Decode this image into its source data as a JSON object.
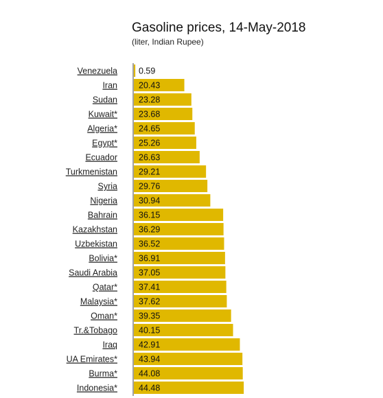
{
  "chart_data": {
    "type": "bar",
    "orientation": "horizontal",
    "title": "Gasoline prices, 14-May-2018",
    "subtitle": "(liter, Indian Rupee)",
    "bar_color": "#e0b800",
    "categories": [
      "Venezuela",
      "Iran",
      "Sudan",
      "Kuwait*",
      "Algeria*",
      "Egypt*",
      "Ecuador",
      "Turkmenistan",
      "Syria",
      "Nigeria",
      "Bahrain",
      "Kazakhstan",
      "Uzbekistan",
      "Bolivia*",
      "Saudi Arabia",
      "Qatar*",
      "Malaysia*",
      "Oman*",
      "Tr.&Tobago",
      "Iraq",
      "UA Emirates*",
      "Burma*",
      "Indonesia*"
    ],
    "values": [
      0.59,
      20.43,
      23.28,
      23.68,
      24.65,
      25.26,
      26.63,
      29.21,
      29.76,
      30.94,
      36.15,
      36.29,
      36.52,
      36.91,
      37.05,
      37.41,
      37.62,
      39.35,
      40.15,
      42.91,
      43.94,
      44.08,
      44.48
    ],
    "value_labels": [
      "0.59",
      "20.43",
      "23.28",
      "23.68",
      "24.65",
      "25.26",
      "26.63",
      "29.21",
      "29.76",
      "30.94",
      "36.15",
      "36.29",
      "36.52",
      "36.91",
      "37.05",
      "37.41",
      "37.62",
      "39.35",
      "40.15",
      "42.91",
      "43.94",
      "44.08",
      "44.48"
    ]
  }
}
